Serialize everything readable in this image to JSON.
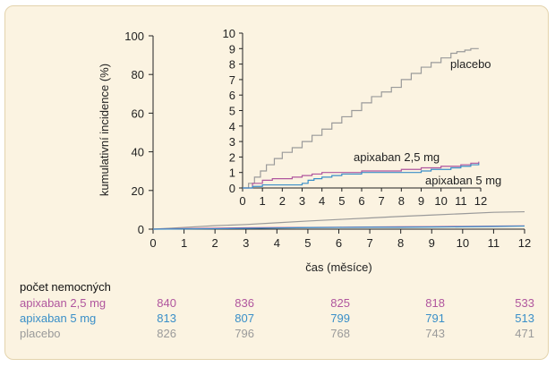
{
  "chart_data": [
    {
      "type": "line",
      "xlabel": "čas (měsíce)",
      "ylabel": "kumulativní incidence (%)",
      "xlim": [
        0,
        12
      ],
      "ylim": [
        0,
        100
      ],
      "xticks": [
        "0",
        "1",
        "2",
        "3",
        "4",
        "5",
        "6",
        "7",
        "8",
        "9",
        "10",
        "11",
        "12"
      ],
      "yticks": [
        "0",
        "20",
        "40",
        "60",
        "80",
        "100"
      ],
      "grid": false,
      "series": [
        {
          "name": "placebo",
          "color": "#9a9a9a",
          "x": [
            0,
            1,
            2,
            3,
            4,
            5,
            6,
            7,
            8,
            9,
            10,
            11,
            12
          ],
          "y": [
            0,
            0.9,
            1.8,
            2.4,
            3.3,
            4.2,
            5.0,
            5.8,
            6.6,
            7.3,
            8.0,
            8.7,
            9.0
          ]
        },
        {
          "name": "apixaban 2,5 mg",
          "color": "#b0569e",
          "x": [
            0,
            1,
            2,
            3,
            4,
            5,
            6,
            7,
            8,
            9,
            10,
            11,
            12
          ],
          "y": [
            0,
            0.3,
            0.5,
            0.7,
            0.8,
            0.9,
            1.0,
            1.1,
            1.2,
            1.3,
            1.4,
            1.6,
            1.7
          ]
        },
        {
          "name": "apixaban 5 mg",
          "color": "#3a8fc8",
          "x": [
            0,
            1,
            2,
            3,
            4,
            5,
            6,
            7,
            8,
            9,
            10,
            11,
            12
          ],
          "y": [
            0,
            0.1,
            0.2,
            0.4,
            0.6,
            0.8,
            0.9,
            1.0,
            1.0,
            1.1,
            1.2,
            1.4,
            1.6
          ]
        }
      ]
    },
    {
      "type": "line",
      "note": "inset (zoomed y-axis)",
      "xlim": [
        0,
        12
      ],
      "ylim": [
        0,
        10
      ],
      "xticks": [
        "0",
        "1",
        "2",
        "3",
        "4",
        "5",
        "6",
        "7",
        "8",
        "9",
        "10",
        "11",
        "12"
      ],
      "yticks": [
        "0",
        "1",
        "2",
        "3",
        "4",
        "5",
        "6",
        "7",
        "8",
        "9",
        "10"
      ],
      "series": [
        {
          "name": "placebo",
          "color": "#9a9a9a",
          "x": [
            0,
            0.3,
            0.6,
            0.9,
            1.2,
            1.6,
            2.0,
            2.5,
            3.0,
            3.5,
            4.0,
            4.5,
            5.0,
            5.5,
            6.0,
            6.5,
            7.0,
            7.5,
            8.0,
            8.5,
            9.0,
            9.5,
            10.0,
            10.5,
            10.8,
            11.2,
            11.5,
            11.9
          ],
          "y": [
            0,
            0.3,
            0.7,
            1.1,
            1.5,
            1.9,
            2.3,
            2.6,
            3.0,
            3.4,
            3.8,
            4.2,
            4.6,
            5.0,
            5.5,
            5.9,
            6.2,
            6.5,
            7.0,
            7.4,
            7.8,
            8.1,
            8.4,
            8.7,
            8.8,
            8.9,
            9.0,
            9.0
          ]
        },
        {
          "name": "apixaban 2,5 mg",
          "color": "#b0569e",
          "x": [
            0,
            0.5,
            1.0,
            1.5,
            2.0,
            2.5,
            3.0,
            3.5,
            4.0,
            5.0,
            6.0,
            7.0,
            8.0,
            9.0,
            9.5,
            10.0,
            10.5,
            11.0,
            11.5,
            11.9
          ],
          "y": [
            0,
            0.3,
            0.5,
            0.6,
            0.6,
            0.7,
            0.8,
            0.9,
            1.0,
            1.0,
            1.1,
            1.1,
            1.2,
            1.3,
            1.3,
            1.4,
            1.4,
            1.5,
            1.6,
            1.7
          ]
        },
        {
          "name": "apixaban 5 mg",
          "color": "#3a8fc8",
          "x": [
            0,
            0.5,
            1.0,
            2.0,
            3.0,
            3.3,
            3.6,
            4.0,
            4.5,
            5.0,
            5.5,
            6.0,
            7.0,
            8.0,
            9.0,
            9.5,
            10.0,
            10.5,
            11.0,
            11.5,
            11.9
          ],
          "y": [
            0,
            0.1,
            0.2,
            0.2,
            0.3,
            0.5,
            0.6,
            0.7,
            0.8,
            0.9,
            0.9,
            1.0,
            1.0,
            1.0,
            1.1,
            1.2,
            1.2,
            1.3,
            1.4,
            1.5,
            1.6
          ]
        }
      ],
      "labels": {
        "placebo": "placebo",
        "apix25": "apixaban 2,5 mg",
        "apix5": "apixaban 5 mg"
      }
    }
  ],
  "risk_table": {
    "title": "počet nemocných",
    "rows": [
      {
        "label": "apixaban 2,5 mg",
        "color": "#b0569e",
        "values": [
          "840",
          "836",
          "825",
          "818",
          "533"
        ]
      },
      {
        "label": "apixaban 5 mg",
        "color": "#3a8fc8",
        "values": [
          "813",
          "807",
          "799",
          "791",
          "513"
        ]
      },
      {
        "label": "placebo",
        "color": "#9a9a9a",
        "values": [
          "826",
          "796",
          "768",
          "743",
          "471"
        ]
      }
    ]
  }
}
